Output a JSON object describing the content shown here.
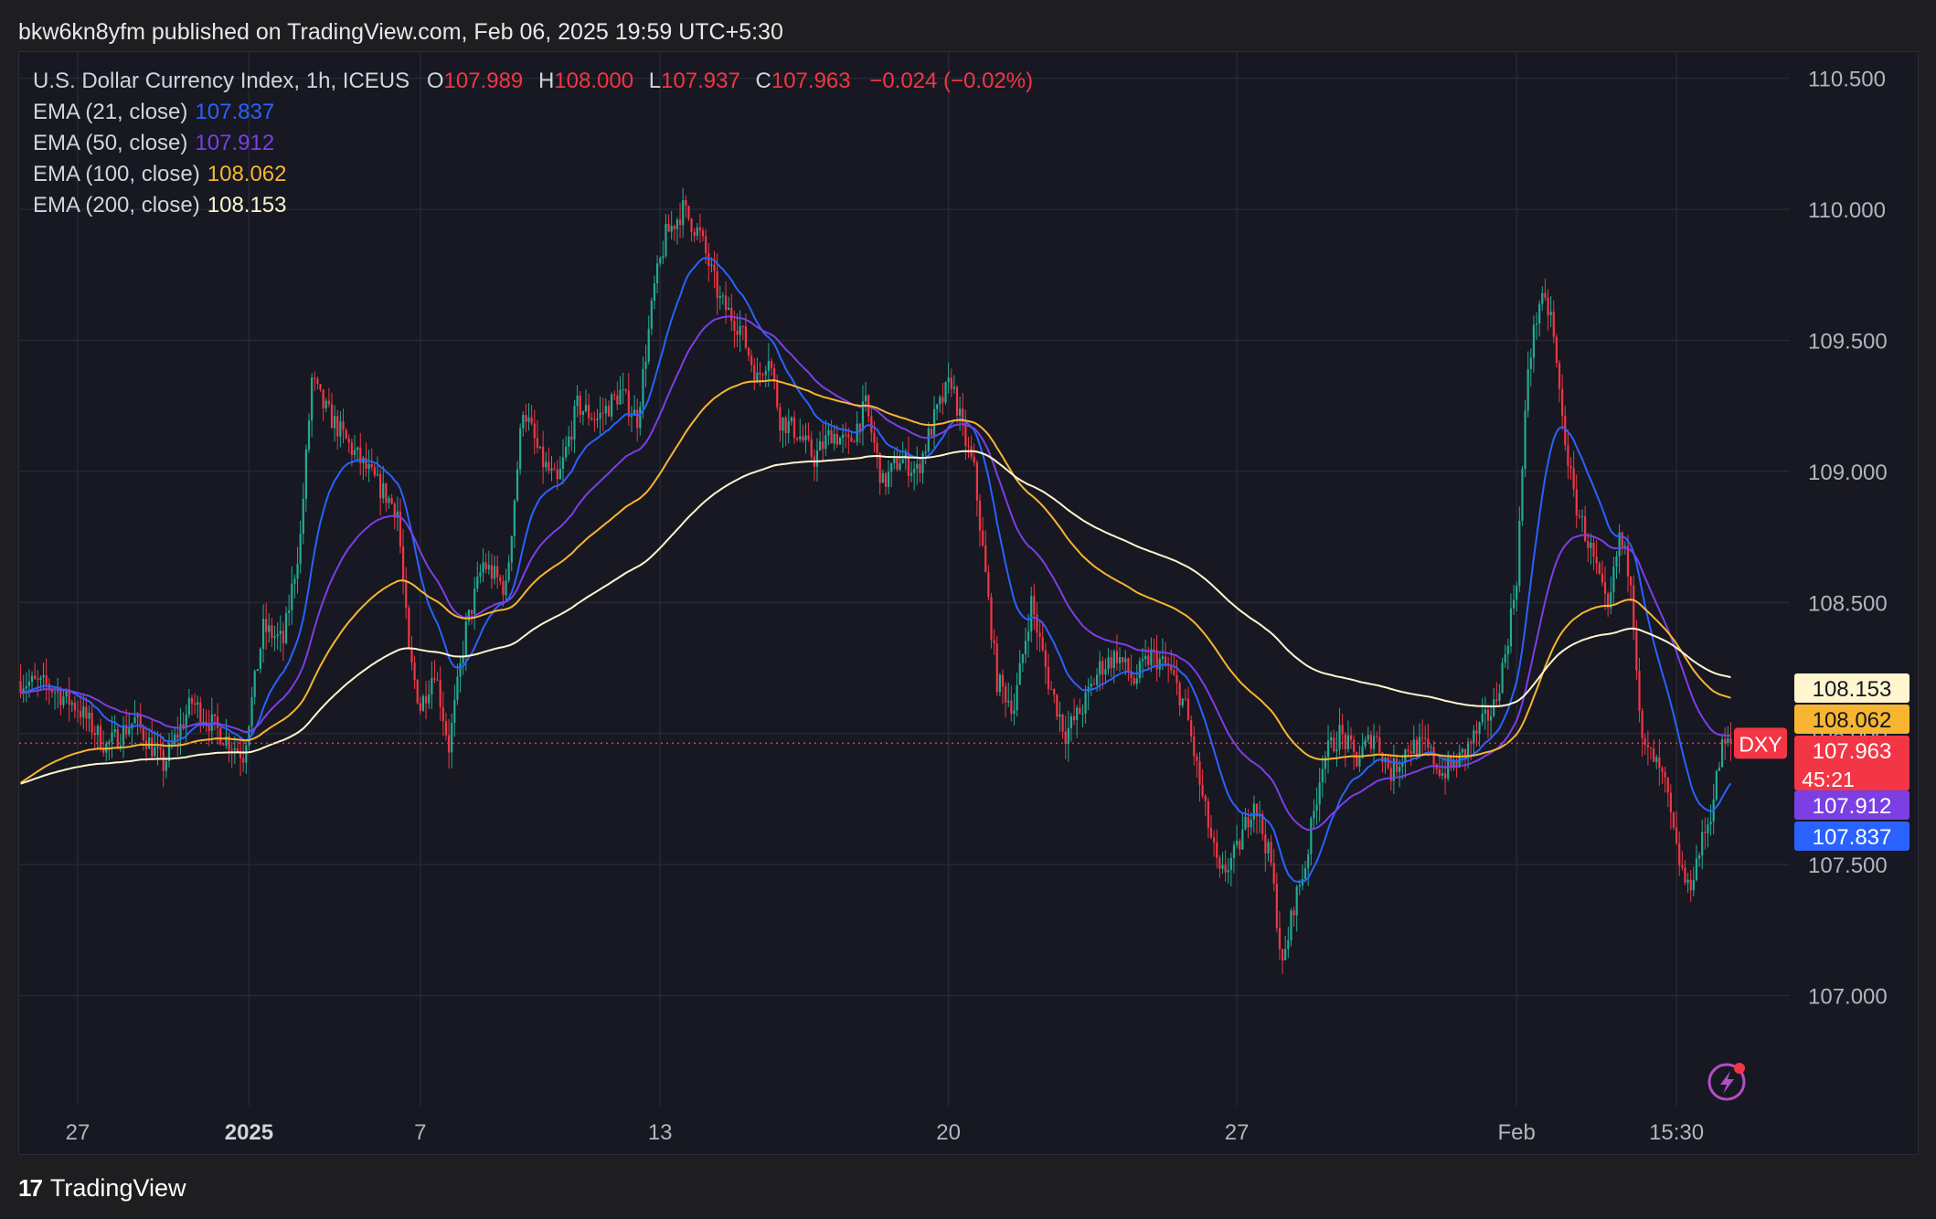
{
  "header": {
    "text": "bkw6kn8yfm published on TradingView.com, Feb 06, 2025 19:59 UTC+5:30"
  },
  "legend": {
    "symbol": "U.S. Dollar Currency Index, 1h, ICEUS",
    "o_label": "O",
    "o_value": "107.989",
    "h_label": "H",
    "h_value": "108.000",
    "l_label": "L",
    "l_value": "107.937",
    "c_label": "C",
    "c_value": "107.963",
    "change": "−0.024 (−0.02%)",
    "ema21_label": "EMA (21, close)",
    "ema21_value": "107.837",
    "ema50_label": "EMA (50, close)",
    "ema50_value": "107.912",
    "ema100_label": "EMA (100, close)",
    "ema100_value": "108.062",
    "ema200_label": "EMA (200, close)",
    "ema200_value": "108.153"
  },
  "footer": {
    "logo": "17",
    "brand": "TradingView"
  },
  "colors": {
    "up": "#22ab94",
    "down": "#f23645",
    "ema21": "#2962ff",
    "ema50": "#7b3fe4",
    "ema100": "#f7b531",
    "ema200": "#fff6cf",
    "grid": "#262833",
    "axis_text": "#b2b5be",
    "bg": "#171821",
    "frame_bg": "#1e1e21"
  },
  "chart_data": {
    "type": "candlestick",
    "symbol_tag": "DXY",
    "countdown": "45:21",
    "ylim": [
      106.58,
      110.6
    ],
    "y_ticks": [
      110.5,
      110.0,
      109.5,
      109.0,
      108.5,
      108.0,
      107.5,
      107.0
    ],
    "y_tick_labels": [
      "110.500",
      "110.000",
      "109.500",
      "109.000",
      "108.500",
      "108.000",
      "107.500",
      "107.000"
    ],
    "x_tick_labels": [
      "27",
      "2025",
      "7",
      "13",
      "20",
      "27",
      "Feb",
      "15:30"
    ],
    "x_tick_bold": [
      false,
      true,
      false,
      false,
      false,
      false,
      false,
      false
    ],
    "x_tick_index": [
      20,
      80,
      140,
      224,
      325,
      426,
      524,
      580
    ],
    "bar_count": 600,
    "last_price": 107.963,
    "price_labels": [
      {
        "name": "EMA 200",
        "value": 108.153,
        "text": "108.153"
      },
      {
        "name": "EMA 100",
        "value": 108.062,
        "text": "108.062"
      },
      {
        "name": "Last",
        "value": 107.963,
        "text": "107.963"
      },
      {
        "name": "EMA 50",
        "value": 107.912,
        "text": "107.912"
      },
      {
        "name": "EMA 21",
        "value": 107.837,
        "text": "107.837"
      }
    ],
    "price_path": [
      [
        0,
        108.2
      ],
      [
        10,
        108.18
      ],
      [
        20,
        108.1
      ],
      [
        30,
        107.95
      ],
      [
        40,
        108.05
      ],
      [
        50,
        107.88
      ],
      [
        60,
        108.12
      ],
      [
        70,
        108.0
      ],
      [
        78,
        107.92
      ],
      [
        85,
        108.4
      ],
      [
        92,
        108.35
      ],
      [
        98,
        108.75
      ],
      [
        102,
        109.35
      ],
      [
        106,
        109.25
      ],
      [
        115,
        109.1
      ],
      [
        125,
        108.95
      ],
      [
        132,
        108.85
      ],
      [
        136,
        108.3
      ],
      [
        140,
        108.1
      ],
      [
        145,
        108.25
      ],
      [
        150,
        107.95
      ],
      [
        156,
        108.4
      ],
      [
        162,
        108.65
      ],
      [
        170,
        108.55
      ],
      [
        176,
        109.25
      ],
      [
        182,
        109.05
      ],
      [
        188,
        108.95
      ],
      [
        195,
        109.25
      ],
      [
        202,
        109.2
      ],
      [
        210,
        109.3
      ],
      [
        216,
        109.2
      ],
      [
        222,
        109.7
      ],
      [
        226,
        109.9
      ],
      [
        232,
        110.0
      ],
      [
        238,
        109.9
      ],
      [
        245,
        109.65
      ],
      [
        252,
        109.55
      ],
      [
        258,
        109.35
      ],
      [
        262,
        109.45
      ],
      [
        266,
        109.2
      ],
      [
        272,
        109.15
      ],
      [
        278,
        109.05
      ],
      [
        284,
        109.15
      ],
      [
        290,
        109.1
      ],
      [
        296,
        109.25
      ],
      [
        302,
        108.95
      ],
      [
        308,
        109.05
      ],
      [
        314,
        109.0
      ],
      [
        320,
        109.2
      ],
      [
        326,
        109.35
      ],
      [
        330,
        109.15
      ],
      [
        334,
        109.0
      ],
      [
        338,
        108.6
      ],
      [
        342,
        108.2
      ],
      [
        348,
        108.1
      ],
      [
        354,
        108.5
      ],
      [
        360,
        108.2
      ],
      [
        366,
        108.0
      ],
      [
        372,
        108.1
      ],
      [
        378,
        108.25
      ],
      [
        384,
        108.3
      ],
      [
        390,
        108.2
      ],
      [
        396,
        108.3
      ],
      [
        402,
        108.25
      ],
      [
        408,
        108.1
      ],
      [
        414,
        107.75
      ],
      [
        420,
        107.45
      ],
      [
        426,
        107.55
      ],
      [
        432,
        107.75
      ],
      [
        438,
        107.5
      ],
      [
        442,
        107.1
      ],
      [
        446,
        107.35
      ],
      [
        450,
        107.5
      ],
      [
        456,
        107.9
      ],
      [
        462,
        108.0
      ],
      [
        468,
        107.9
      ],
      [
        474,
        108.0
      ],
      [
        480,
        107.85
      ],
      [
        486,
        107.95
      ],
      [
        492,
        107.95
      ],
      [
        498,
        107.85
      ],
      [
        504,
        107.9
      ],
      [
        510,
        108.0
      ],
      [
        516,
        108.1
      ],
      [
        520,
        108.3
      ],
      [
        524,
        108.6
      ],
      [
        528,
        109.4
      ],
      [
        532,
        109.65
      ],
      [
        536,
        109.6
      ],
      [
        540,
        109.2
      ],
      [
        544,
        108.9
      ],
      [
        550,
        108.7
      ],
      [
        556,
        108.45
      ],
      [
        560,
        108.75
      ],
      [
        564,
        108.6
      ],
      [
        568,
        107.95
      ],
      [
        572,
        107.9
      ],
      [
        576,
        107.8
      ],
      [
        580,
        107.55
      ],
      [
        584,
        107.4
      ],
      [
        588,
        107.55
      ],
      [
        592,
        107.7
      ],
      [
        596,
        107.95
      ],
      [
        599,
        107.963
      ]
    ],
    "ema_series": [
      {
        "name": "EMA (21, close)",
        "period": 21,
        "color": "#2962ff"
      },
      {
        "name": "EMA (50, close)",
        "period": 50,
        "color": "#7b3fe4"
      },
      {
        "name": "EMA (100, close)",
        "period": 100,
        "color": "#f7b531"
      },
      {
        "name": "EMA (200, close)",
        "period": 200,
        "color": "#fff6cf"
      }
    ]
  }
}
